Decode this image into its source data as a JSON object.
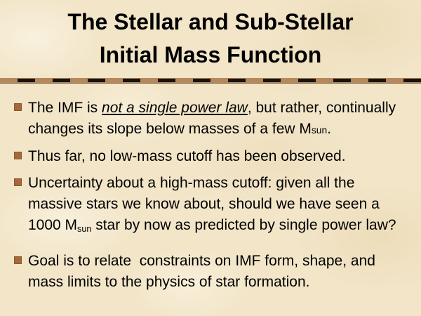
{
  "slide": {
    "title_line1": "The Stellar and Sub-Stellar",
    "title_line2": "Initial Mass Function",
    "colors": {
      "background": "#f2e5c8",
      "text": "#000000",
      "bullet": "#a5693b",
      "divider_tan": "#b5895b",
      "divider_dash": "#161310",
      "divider_edge": "#7e5f3d"
    },
    "bullets": [
      {
        "segments": [
          {
            "t": "The IMF is ",
            "s": "normal"
          },
          {
            "t": "not a single power law",
            "s": "italic-underline"
          },
          {
            "t": ", but rather, continually",
            "s": "normal"
          },
          {
            "t": "",
            "s": "break"
          },
          {
            "t": "changes its slope below masses of a few M",
            "s": "normal"
          },
          {
            "t": "sun",
            "s": "small"
          },
          {
            "t": ".",
            "s": "normal"
          }
        ]
      },
      {
        "segments": [
          {
            "t": "Thus far, no low-mass cutoff has been observed.",
            "s": "normal"
          }
        ]
      },
      {
        "segments": [
          {
            "t": "Uncertainty about a high-mass cutoff: given all the",
            "s": "normal"
          },
          {
            "t": "",
            "s": "break"
          },
          {
            "t": "massive stars we know about, should we have seen a",
            "s": "normal"
          },
          {
            "t": "",
            "s": "break"
          },
          {
            "t": "1000 M",
            "s": "normal"
          },
          {
            "t": "sun",
            "s": "sub"
          },
          {
            "t": " star by now as predicted by single power law?",
            "s": "normal"
          }
        ]
      },
      {
        "segments": [
          {
            "t": "Goal is to relate  constraints on IMF form, shape, and",
            "s": "normal"
          },
          {
            "t": "",
            "s": "break"
          },
          {
            "t": "mass limits to the physics of star formation.",
            "s": "normal"
          }
        ]
      }
    ]
  }
}
